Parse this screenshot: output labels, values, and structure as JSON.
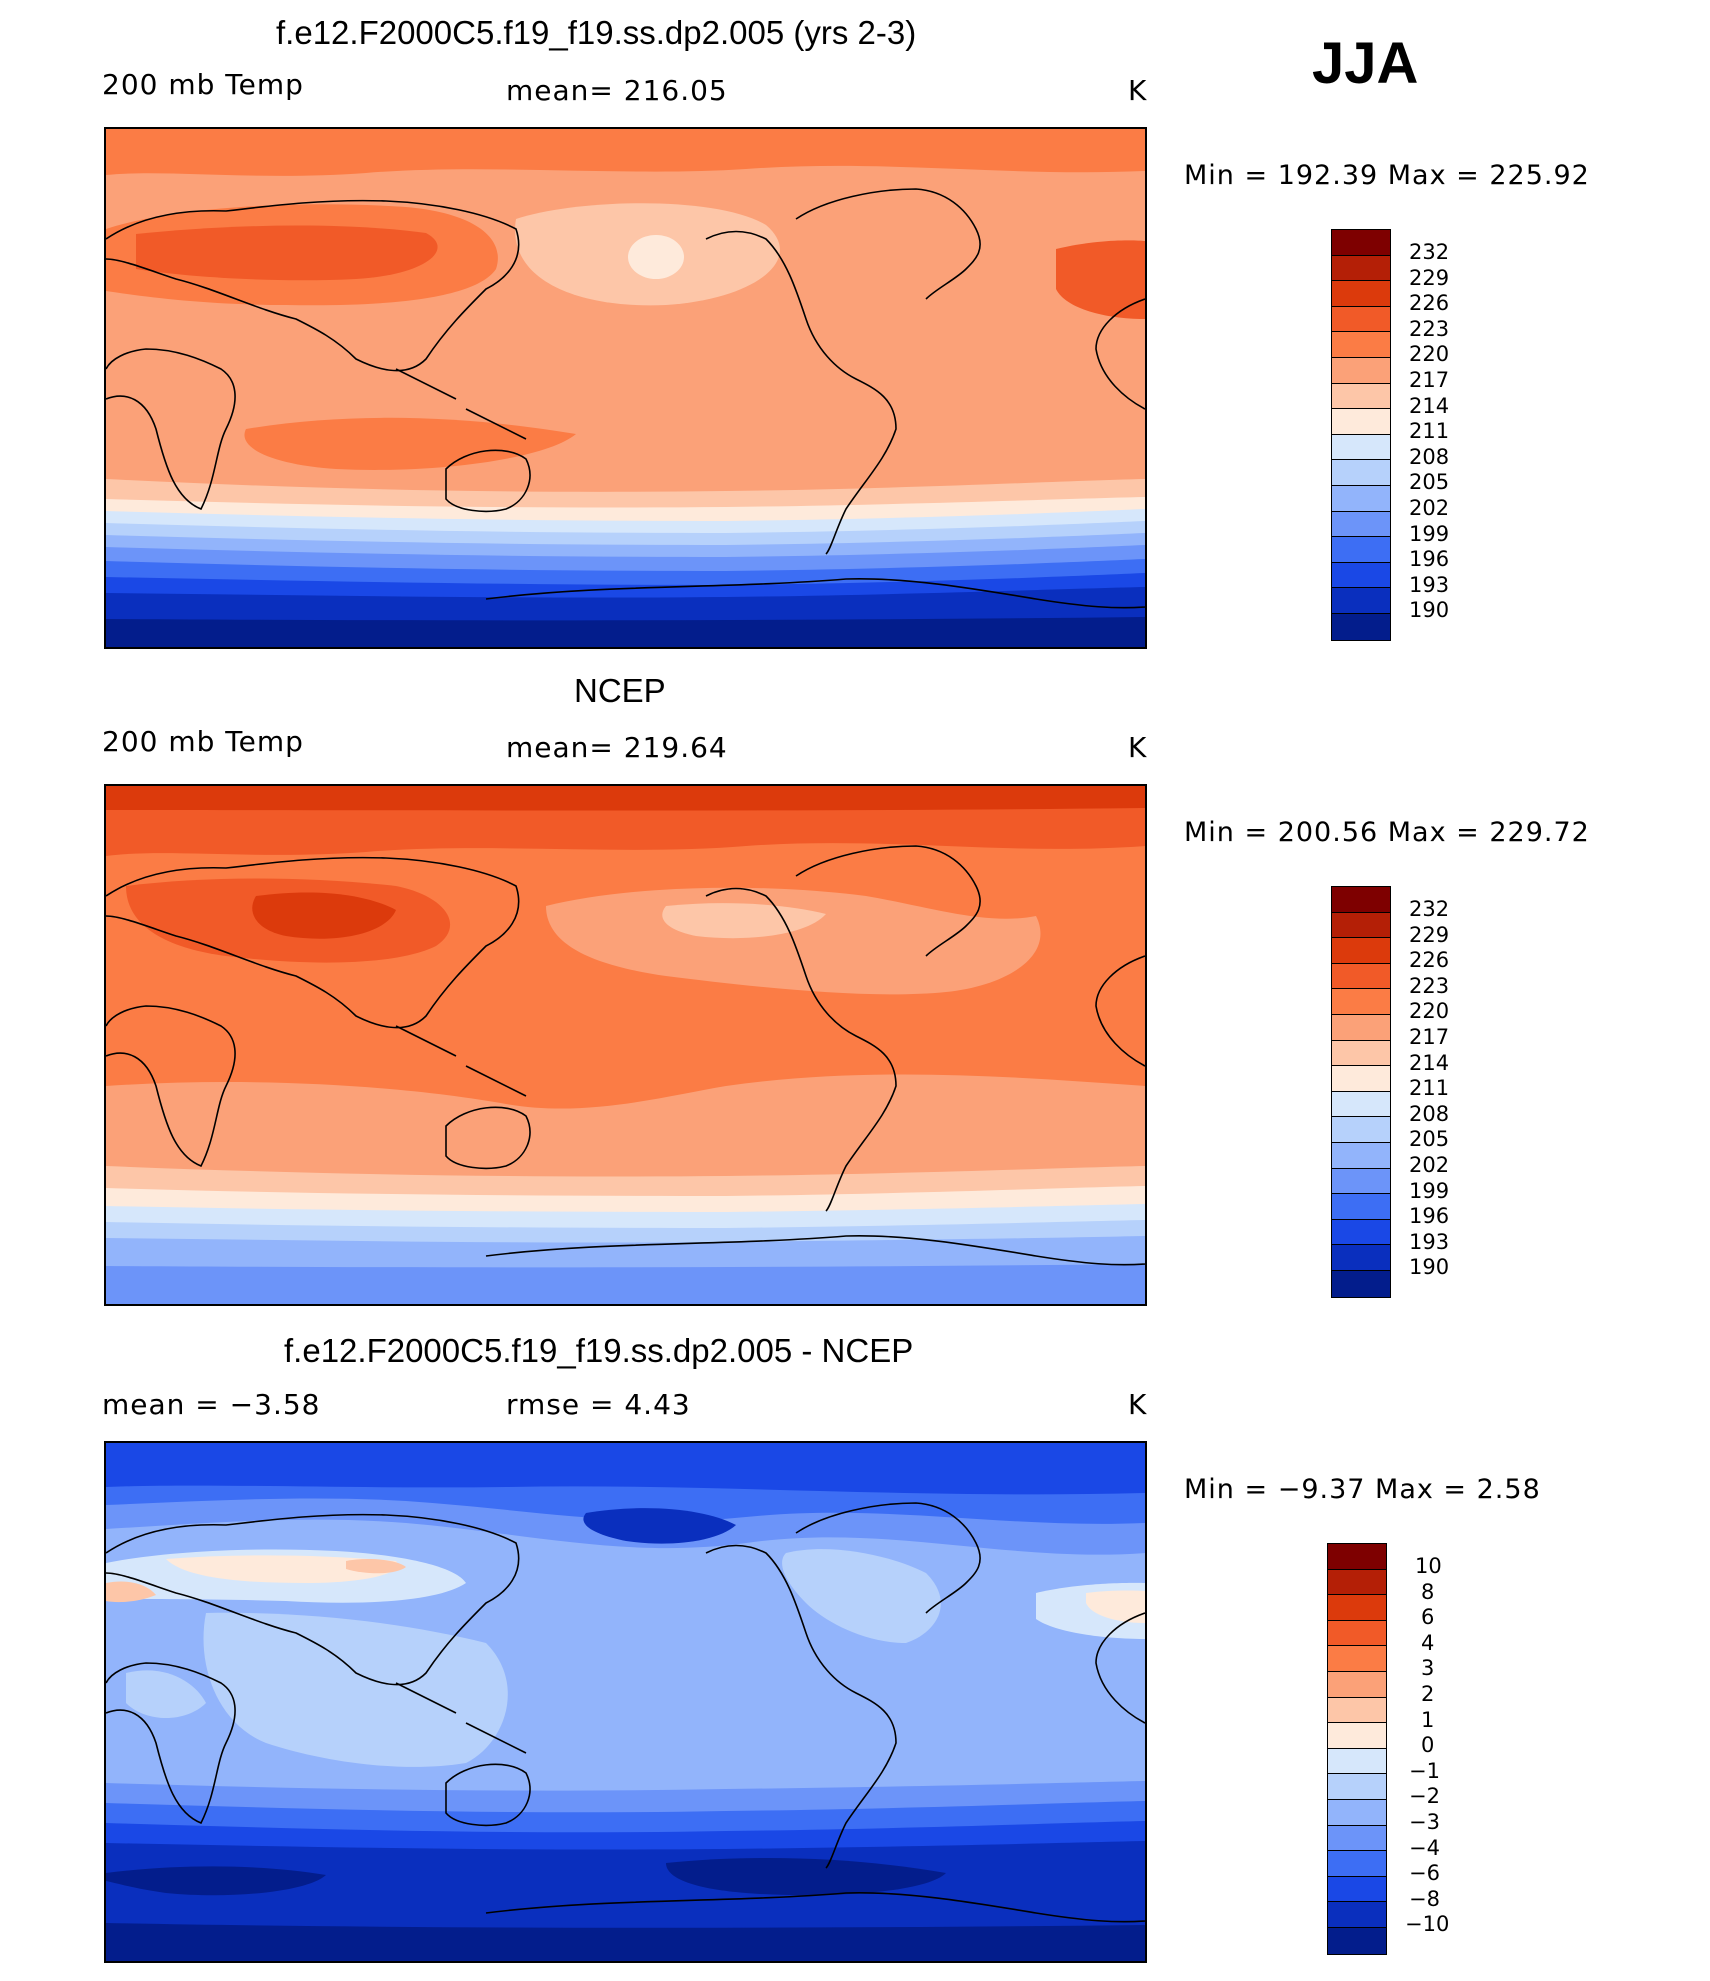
{
  "season": "JJA",
  "panels": [
    {
      "title": "f.e12.F2000C5.f19_f19.ss.dp2.005 (yrs 2-3)",
      "left_label": "200 mb Temp",
      "center_label": "mean=  216.05",
      "units": "K",
      "minmax": "Min  =  192.39  Max  =  225.92",
      "colorbar_labels": [
        "232",
        "229",
        "226",
        "223",
        "220",
        "217",
        "214",
        "211",
        "208",
        "205",
        "202",
        "199",
        "196",
        "193",
        "190"
      ]
    },
    {
      "title": "NCEP",
      "left_label": "200 mb Temp",
      "center_label": "mean=  219.64",
      "units": "K",
      "minmax": "Min  =  200.56  Max  =  229.72",
      "colorbar_labels": [
        "232",
        "229",
        "226",
        "223",
        "220",
        "217",
        "214",
        "211",
        "208",
        "205",
        "202",
        "199",
        "196",
        "193",
        "190"
      ]
    },
    {
      "title": "f.e12.F2000C5.f19_f19.ss.dp2.005 - NCEP",
      "left_label": "mean  =     −3.58",
      "center_label": "rmse  =     4.43",
      "units": "K",
      "minmax": "Min  =    −9.37  Max  =     2.58",
      "colorbar_labels": [
        "10",
        "8",
        "6",
        "4",
        "3",
        "2",
        "1",
        "0",
        "−1",
        "−2",
        "−3",
        "−4",
        "−6",
        "−8",
        "−10"
      ]
    }
  ],
  "colorbar_colors": [
    "#7e0000",
    "#b41f06",
    "#dc3a0c",
    "#f15a28",
    "#fb7c45",
    "#fba178",
    "#fdc6a8",
    "#feeadb",
    "#d6e7fb",
    "#b6d1fb",
    "#92b4fb",
    "#6c94f9",
    "#3d6ef4",
    "#1a48e6",
    "#0a2fbe",
    "#031d8c",
    "#000b6e"
  ]
}
